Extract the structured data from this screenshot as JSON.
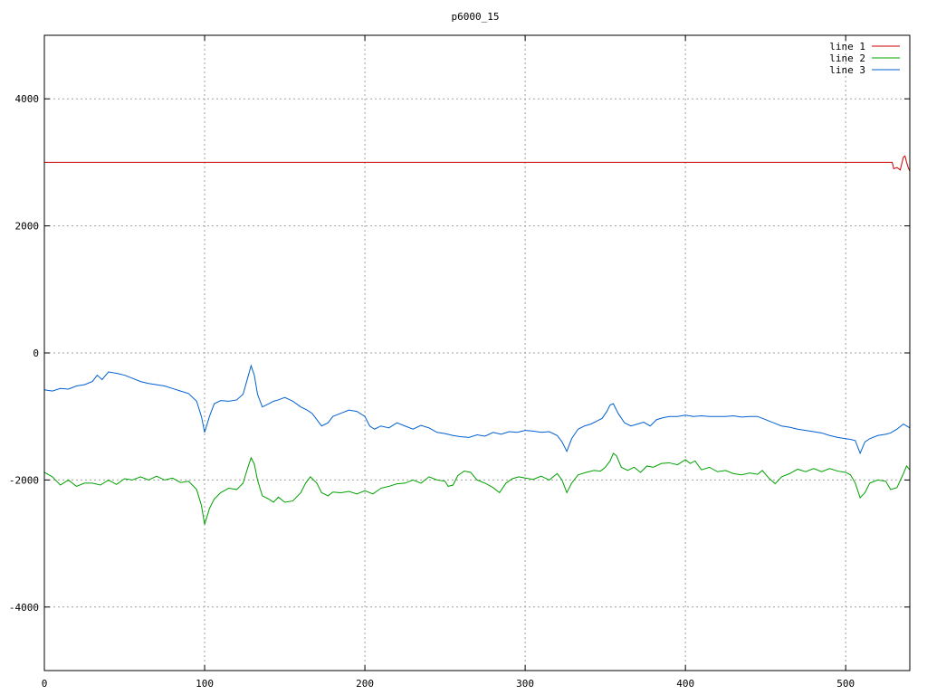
{
  "chart_data": {
    "type": "line",
    "title": "p6000_15",
    "xlabel": "",
    "ylabel": "",
    "xlim": [
      0,
      540
    ],
    "ylim": [
      -5000,
      5000
    ],
    "x_ticks": [
      0,
      100,
      200,
      300,
      400,
      500
    ],
    "y_ticks": [
      -4000,
      -2000,
      0,
      2000,
      4000
    ],
    "x_tick_labels": [
      "0",
      "100",
      "200",
      "300",
      "400",
      "500"
    ],
    "y_tick_labels": [
      "-4000",
      "-2000",
      "0",
      "2000",
      "4000"
    ],
    "grid": true,
    "legend_position": "top-right",
    "series": [
      {
        "name": "line 1",
        "color": "#cc0000",
        "points": [
          [
            0,
            3000
          ],
          [
            100,
            3000
          ],
          [
            200,
            3000
          ],
          [
            300,
            3000
          ],
          [
            400,
            3000
          ],
          [
            500,
            3000
          ],
          [
            529,
            3000
          ],
          [
            530,
            2900
          ],
          [
            532,
            2920
          ],
          [
            534,
            2880
          ],
          [
            536,
            3080
          ],
          [
            537,
            3100
          ],
          [
            538,
            3000
          ],
          [
            539,
            2920
          ],
          [
            540,
            2860
          ]
        ]
      },
      {
        "name": "line 2",
        "color": "#00a000",
        "points": [
          [
            0,
            -1880
          ],
          [
            5,
            -1950
          ],
          [
            10,
            -2080
          ],
          [
            15,
            -2000
          ],
          [
            20,
            -2100
          ],
          [
            25,
            -2050
          ],
          [
            30,
            -2050
          ],
          [
            35,
            -2080
          ],
          [
            40,
            -2000
          ],
          [
            45,
            -2070
          ],
          [
            50,
            -1980
          ],
          [
            55,
            -2000
          ],
          [
            60,
            -1950
          ],
          [
            65,
            -2000
          ],
          [
            70,
            -1940
          ],
          [
            75,
            -2000
          ],
          [
            80,
            -1970
          ],
          [
            85,
            -2040
          ],
          [
            90,
            -2020
          ],
          [
            95,
            -2150
          ],
          [
            98,
            -2400
          ],
          [
            100,
            -2700
          ],
          [
            103,
            -2450
          ],
          [
            106,
            -2300
          ],
          [
            110,
            -2200
          ],
          [
            115,
            -2130
          ],
          [
            120,
            -2150
          ],
          [
            124,
            -2050
          ],
          [
            127,
            -1800
          ],
          [
            129,
            -1650
          ],
          [
            131,
            -1750
          ],
          [
            133,
            -2000
          ],
          [
            136,
            -2250
          ],
          [
            140,
            -2300
          ],
          [
            143,
            -2350
          ],
          [
            146,
            -2270
          ],
          [
            150,
            -2350
          ],
          [
            155,
            -2330
          ],
          [
            160,
            -2200
          ],
          [
            163,
            -2050
          ],
          [
            166,
            -1950
          ],
          [
            170,
            -2050
          ],
          [
            173,
            -2200
          ],
          [
            177,
            -2250
          ],
          [
            180,
            -2190
          ],
          [
            185,
            -2200
          ],
          [
            190,
            -2180
          ],
          [
            195,
            -2220
          ],
          [
            200,
            -2170
          ],
          [
            205,
            -2220
          ],
          [
            210,
            -2130
          ],
          [
            215,
            -2100
          ],
          [
            220,
            -2060
          ],
          [
            225,
            -2050
          ],
          [
            230,
            -2000
          ],
          [
            235,
            -2050
          ],
          [
            240,
            -1950
          ],
          [
            245,
            -2000
          ],
          [
            250,
            -2020
          ],
          [
            252,
            -2100
          ],
          [
            255,
            -2080
          ],
          [
            258,
            -1930
          ],
          [
            262,
            -1860
          ],
          [
            266,
            -1880
          ],
          [
            270,
            -2000
          ],
          [
            275,
            -2050
          ],
          [
            280,
            -2120
          ],
          [
            284,
            -2200
          ],
          [
            288,
            -2050
          ],
          [
            292,
            -1980
          ],
          [
            296,
            -1950
          ],
          [
            300,
            -1970
          ],
          [
            305,
            -1990
          ],
          [
            310,
            -1940
          ],
          [
            315,
            -2000
          ],
          [
            320,
            -1900
          ],
          [
            323,
            -2000
          ],
          [
            326,
            -2200
          ],
          [
            329,
            -2050
          ],
          [
            333,
            -1920
          ],
          [
            338,
            -1880
          ],
          [
            343,
            -1850
          ],
          [
            347,
            -1860
          ],
          [
            350,
            -1800
          ],
          [
            353,
            -1700
          ],
          [
            355,
            -1580
          ],
          [
            357,
            -1620
          ],
          [
            360,
            -1800
          ],
          [
            364,
            -1850
          ],
          [
            368,
            -1800
          ],
          [
            372,
            -1880
          ],
          [
            376,
            -1780
          ],
          [
            380,
            -1800
          ],
          [
            385,
            -1740
          ],
          [
            390,
            -1730
          ],
          [
            395,
            -1760
          ],
          [
            400,
            -1680
          ],
          [
            403,
            -1740
          ],
          [
            406,
            -1700
          ],
          [
            410,
            -1840
          ],
          [
            415,
            -1800
          ],
          [
            420,
            -1870
          ],
          [
            425,
            -1850
          ],
          [
            430,
            -1900
          ],
          [
            435,
            -1920
          ],
          [
            440,
            -1890
          ],
          [
            445,
            -1910
          ],
          [
            448,
            -1850
          ],
          [
            452,
            -1970
          ],
          [
            456,
            -2060
          ],
          [
            460,
            -1950
          ],
          [
            465,
            -1900
          ],
          [
            470,
            -1830
          ],
          [
            475,
            -1870
          ],
          [
            480,
            -1820
          ],
          [
            485,
            -1870
          ],
          [
            490,
            -1820
          ],
          [
            495,
            -1860
          ],
          [
            500,
            -1880
          ],
          [
            503,
            -1920
          ],
          [
            506,
            -2050
          ],
          [
            509,
            -2280
          ],
          [
            512,
            -2200
          ],
          [
            515,
            -2050
          ],
          [
            520,
            -2000
          ],
          [
            525,
            -2020
          ],
          [
            528,
            -2150
          ],
          [
            532,
            -2120
          ],
          [
            536,
            -1900
          ],
          [
            538,
            -1780
          ],
          [
            540,
            -1840
          ]
        ]
      },
      {
        "name": "line 3",
        "color": "#0060d0",
        "points": [
          [
            0,
            -580
          ],
          [
            5,
            -600
          ],
          [
            10,
            -560
          ],
          [
            15,
            -570
          ],
          [
            20,
            -520
          ],
          [
            25,
            -500
          ],
          [
            30,
            -450
          ],
          [
            33,
            -350
          ],
          [
            36,
            -420
          ],
          [
            40,
            -300
          ],
          [
            45,
            -320
          ],
          [
            50,
            -350
          ],
          [
            55,
            -400
          ],
          [
            60,
            -450
          ],
          [
            65,
            -480
          ],
          [
            70,
            -500
          ],
          [
            75,
            -520
          ],
          [
            80,
            -560
          ],
          [
            85,
            -600
          ],
          [
            90,
            -640
          ],
          [
            95,
            -760
          ],
          [
            98,
            -1000
          ],
          [
            100,
            -1250
          ],
          [
            103,
            -1000
          ],
          [
            106,
            -800
          ],
          [
            110,
            -750
          ],
          [
            115,
            -760
          ],
          [
            120,
            -740
          ],
          [
            124,
            -650
          ],
          [
            127,
            -380
          ],
          [
            129,
            -200
          ],
          [
            131,
            -350
          ],
          [
            133,
            -650
          ],
          [
            136,
            -850
          ],
          [
            140,
            -800
          ],
          [
            143,
            -760
          ],
          [
            146,
            -740
          ],
          [
            150,
            -700
          ],
          [
            155,
            -760
          ],
          [
            160,
            -850
          ],
          [
            164,
            -900
          ],
          [
            167,
            -950
          ],
          [
            170,
            -1050
          ],
          [
            173,
            -1150
          ],
          [
            177,
            -1100
          ],
          [
            180,
            -1000
          ],
          [
            185,
            -950
          ],
          [
            190,
            -900
          ],
          [
            195,
            -920
          ],
          [
            200,
            -1000
          ],
          [
            203,
            -1150
          ],
          [
            206,
            -1200
          ],
          [
            210,
            -1150
          ],
          [
            215,
            -1180
          ],
          [
            220,
            -1100
          ],
          [
            225,
            -1150
          ],
          [
            230,
            -1200
          ],
          [
            235,
            -1140
          ],
          [
            240,
            -1180
          ],
          [
            245,
            -1250
          ],
          [
            250,
            -1270
          ],
          [
            255,
            -1300
          ],
          [
            260,
            -1320
          ],
          [
            265,
            -1330
          ],
          [
            270,
            -1290
          ],
          [
            275,
            -1310
          ],
          [
            280,
            -1250
          ],
          [
            285,
            -1280
          ],
          [
            290,
            -1240
          ],
          [
            295,
            -1250
          ],
          [
            300,
            -1220
          ],
          [
            305,
            -1230
          ],
          [
            310,
            -1250
          ],
          [
            315,
            -1240
          ],
          [
            320,
            -1300
          ],
          [
            323,
            -1400
          ],
          [
            326,
            -1550
          ],
          [
            329,
            -1350
          ],
          [
            333,
            -1200
          ],
          [
            337,
            -1150
          ],
          [
            341,
            -1120
          ],
          [
            345,
            -1070
          ],
          [
            348,
            -1030
          ],
          [
            351,
            -920
          ],
          [
            353,
            -820
          ],
          [
            355,
            -800
          ],
          [
            358,
            -950
          ],
          [
            362,
            -1100
          ],
          [
            366,
            -1150
          ],
          [
            370,
            -1120
          ],
          [
            374,
            -1090
          ],
          [
            378,
            -1150
          ],
          [
            382,
            -1050
          ],
          [
            386,
            -1020
          ],
          [
            390,
            -1000
          ],
          [
            395,
            -1000
          ],
          [
            400,
            -980
          ],
          [
            405,
            -1000
          ],
          [
            410,
            -990
          ],
          [
            415,
            -1000
          ],
          [
            420,
            -1000
          ],
          [
            425,
            -1000
          ],
          [
            430,
            -990
          ],
          [
            435,
            -1010
          ],
          [
            440,
            -1000
          ],
          [
            445,
            -1000
          ],
          [
            450,
            -1050
          ],
          [
            455,
            -1100
          ],
          [
            460,
            -1150
          ],
          [
            465,
            -1170
          ],
          [
            470,
            -1200
          ],
          [
            475,
            -1220
          ],
          [
            480,
            -1240
          ],
          [
            485,
            -1260
          ],
          [
            490,
            -1300
          ],
          [
            495,
            -1330
          ],
          [
            500,
            -1350
          ],
          [
            503,
            -1360
          ],
          [
            506,
            -1380
          ],
          [
            509,
            -1580
          ],
          [
            512,
            -1400
          ],
          [
            515,
            -1350
          ],
          [
            520,
            -1300
          ],
          [
            525,
            -1280
          ],
          [
            528,
            -1260
          ],
          [
            532,
            -1200
          ],
          [
            536,
            -1120
          ],
          [
            538,
            -1150
          ],
          [
            540,
            -1180
          ]
        ]
      }
    ]
  }
}
